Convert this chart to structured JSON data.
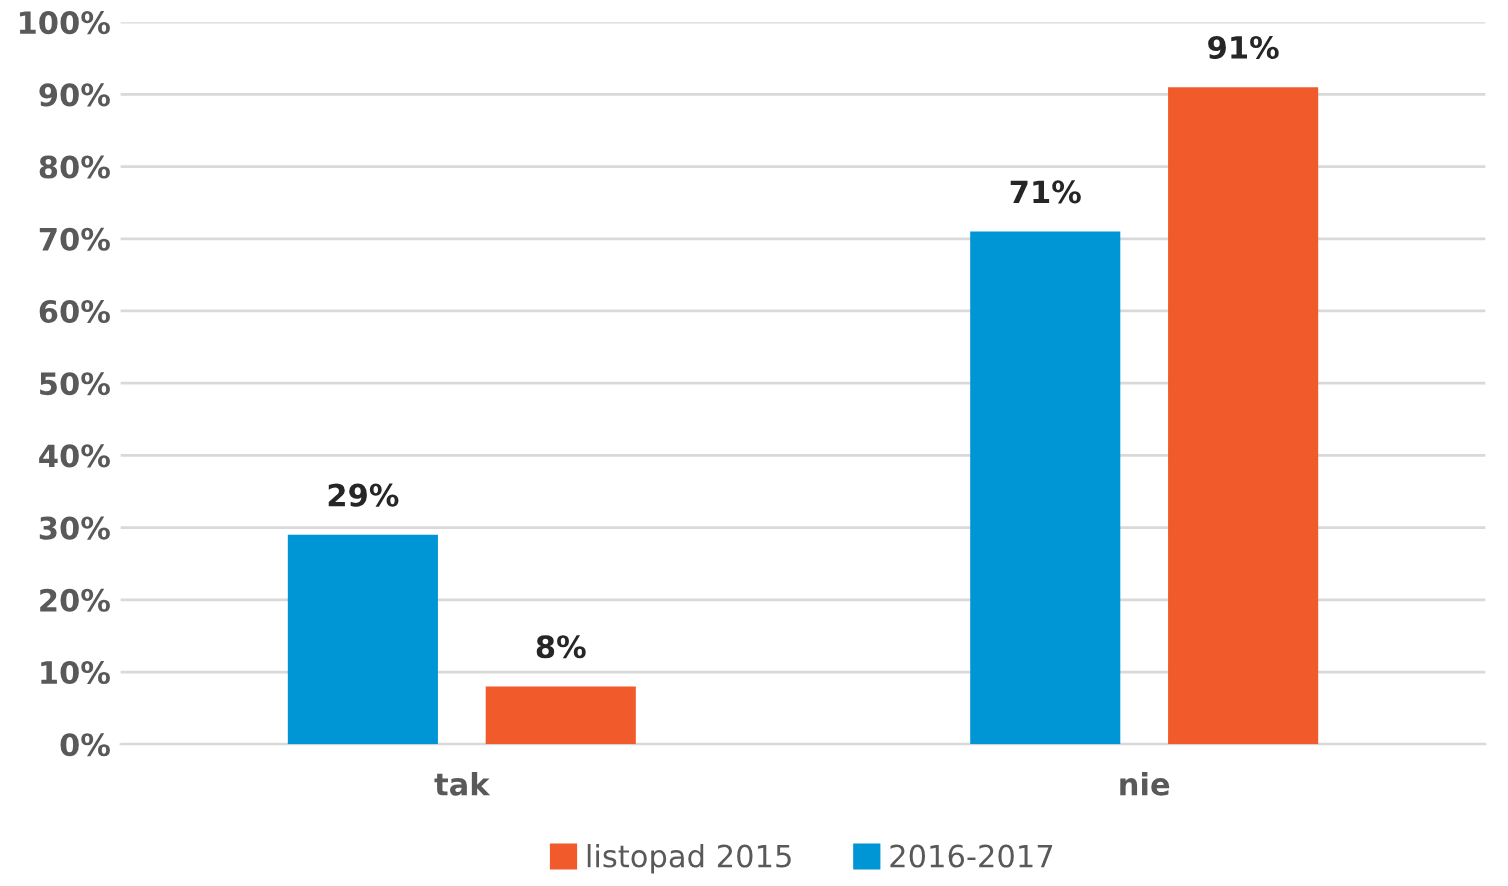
{
  "chart_data": {
    "type": "bar",
    "categories": [
      "tak",
      "nie"
    ],
    "series": [
      {
        "name": "2016-2017",
        "color": "#0096d6",
        "values": [
          29,
          71
        ],
        "value_labels": [
          "29%",
          "71%"
        ]
      },
      {
        "name": "listopad 2015",
        "color": "#f15a2b",
        "values": [
          8,
          91
        ],
        "value_labels": [
          "8%",
          "91%"
        ]
      }
    ],
    "ylim": [
      0,
      100
    ],
    "yticks": [
      {
        "value": 0,
        "label": "0%"
      },
      {
        "value": 10,
        "label": "10%"
      },
      {
        "value": 20,
        "label": "20%"
      },
      {
        "value": 30,
        "label": "30%"
      },
      {
        "value": 40,
        "label": "40%"
      },
      {
        "value": 50,
        "label": "50%"
      },
      {
        "value": 60,
        "label": "60%"
      },
      {
        "value": 70,
        "label": "70%"
      },
      {
        "value": 80,
        "label": "80%"
      },
      {
        "value": 90,
        "label": "90%"
      },
      {
        "value": 100,
        "label": "100%"
      }
    ],
    "grid": "y",
    "legend": "bottom"
  }
}
